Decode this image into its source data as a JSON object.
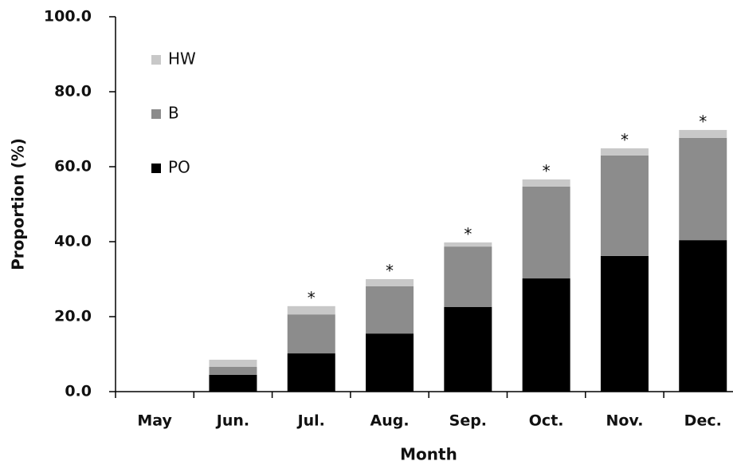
{
  "chart_data": {
    "type": "stacked_bar",
    "x_label": "Month",
    "y_label": "Proportion (%)",
    "categories": [
      "May",
      "Jun.",
      "Jul.",
      "Aug.",
      "Sep.",
      "Oct.",
      "Nov.",
      "Dec."
    ],
    "series": [
      {
        "name": "PO",
        "color": "#000000",
        "values": [
          0,
          4.5,
          10.2,
          15.5,
          22.6,
          30.2,
          36.2,
          40.4
        ]
      },
      {
        "name": "B",
        "color": "#8c8c8c",
        "values": [
          0,
          2.1,
          10.4,
          12.6,
          16.1,
          24.5,
          26.8,
          27.3
        ]
      },
      {
        "name": "HW",
        "color": "#c8c8c8",
        "values": [
          0,
          1.9,
          2.2,
          1.9,
          1.1,
          1.9,
          1.9,
          2.1
        ]
      }
    ],
    "annotations": [
      null,
      null,
      "*",
      "*",
      "*",
      "*",
      "*",
      "*"
    ],
    "ylim": [
      0,
      100
    ],
    "yticks": [
      {
        "value": 0,
        "label": "0.0"
      },
      {
        "value": 20,
        "label": "20.0"
      },
      {
        "value": 40,
        "label": "40.0"
      },
      {
        "value": 60,
        "label": "60.0"
      },
      {
        "value": 80,
        "label": "80.0"
      },
      {
        "value": 100,
        "label": "100.0"
      }
    ],
    "grid": false,
    "legend": "upper left"
  }
}
